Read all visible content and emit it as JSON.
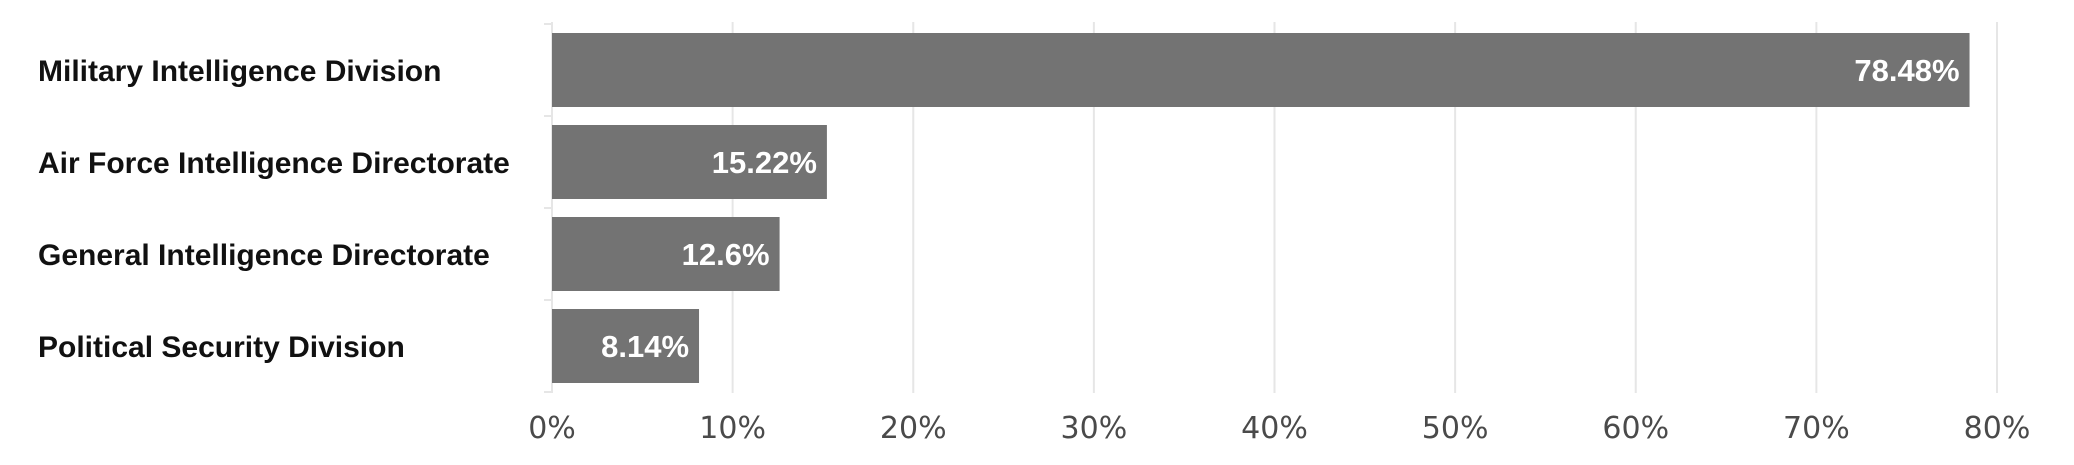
{
  "chart_data": {
    "type": "bar",
    "orientation": "horizontal",
    "categories": [
      "Military Intelligence Division",
      "Air Force Intelligence Directorate",
      "General Intelligence Directorate",
      "Political Security Division"
    ],
    "values": [
      78.48,
      15.22,
      12.6,
      8.14
    ],
    "value_labels": [
      "78.48%",
      "15.22%",
      "12.6%",
      "8.14%"
    ],
    "xlim": [
      0,
      80
    ],
    "x_ticks": [
      0,
      10,
      20,
      30,
      40,
      50,
      60,
      70,
      80
    ],
    "x_tick_labels": [
      "0%",
      "10%",
      "20%",
      "30%",
      "40%",
      "50%",
      "60%",
      "70%",
      "80%"
    ],
    "grid": true,
    "legend": "none",
    "colors": {
      "bar": "#737373",
      "grid": "#e6e6e6",
      "value_text": "#ffffff"
    }
  }
}
